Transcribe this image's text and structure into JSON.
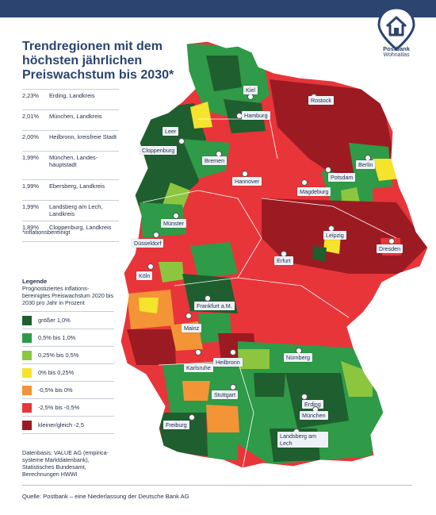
{
  "header": {
    "brand_line1": "Postbank",
    "brand_line2": "Wohnatlas",
    "title": "Trendregionen mit dem höchsten jährlichen Preiswachstum bis 2030*"
  },
  "ranking": [
    {
      "value": "2,23%",
      "name": "Erding, Landkreis"
    },
    {
      "value": "2,01%",
      "name": "München, Landkreis"
    },
    {
      "value": "2,00%",
      "name": "Heilbronn, kreisfreie Stadt"
    },
    {
      "value": "1,99%",
      "name": "München, Landes-hauptstadt"
    },
    {
      "value": "1,99%",
      "name": "Ebersberg, Landkreis"
    },
    {
      "value": "1,99%",
      "name": "Landsberg am Lech, Landkreis"
    },
    {
      "value": "1,89%",
      "name": "Cloppenburg, Landkreis"
    }
  ],
  "footnote": "*inflationsbereinigt",
  "legend": {
    "title": "Legende",
    "subtitle": "Prognostiziertes inflations-bereinigtes Preiswachstum 2020 bis 2030 pro Jahr in Prozent",
    "items": [
      {
        "label": "größer 1,0%",
        "color": "#1f5e2e"
      },
      {
        "label": "0,5% bis 1,0%",
        "color": "#2f9a47"
      },
      {
        "label": "0,25% bis 0,5%",
        "color": "#8cc63e"
      },
      {
        "label": "0% bis 0,25%",
        "color": "#f6e32c"
      },
      {
        "label": "-0,5% bis 0%",
        "color": "#f39436"
      },
      {
        "label": "-2,5% bis -0,5%",
        "color": "#e8353a"
      },
      {
        "label": "kleiner/gleich -2,5",
        "color": "#9c1b22"
      }
    ]
  },
  "data_source": "Datenbasis: VALUE AG (empirica-systeme Marktdatenbank), Statistisches Bundesamt, Berechnungen HWWI",
  "source": "Quelle: Postbank – eine Niederlassung der Deutsche Bank AG",
  "cities": {
    "kiel": "Kiel",
    "rostock": "Rostock",
    "hamburg": "Hamburg",
    "leer": "Leer",
    "cloppenburg": "Cloppenburg",
    "bremen": "Bremen",
    "berlin": "Berlin",
    "potsdam": "Potsdam",
    "hannover": "Hannover",
    "magdeburg": "Magdeburg",
    "muenster": "Münster",
    "leipzig": "Leipzig",
    "duesseldorf": "Düsseldorf",
    "dresden": "Dresden",
    "erfurt": "Erfurt",
    "koeln": "Köln",
    "frankfurt": "Frankfurt a.M.",
    "mainz": "Mainz",
    "karlsruhe": "Karlsruhe",
    "heilbronn": "Heilbronn",
    "nuernberg": "Nürnberg",
    "stuttgart": "Stuttgart",
    "erding": "Erding",
    "muenchen": "München",
    "freiburg": "Freiburg",
    "landsberg": "Landsberg am Lech"
  }
}
